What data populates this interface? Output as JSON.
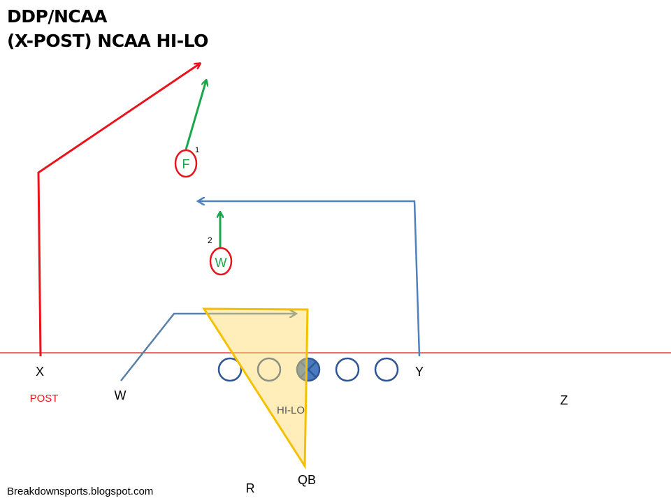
{
  "title_lines": [
    "DDP/NCAA",
    "(X-POST) NCAA HI-LO"
  ],
  "players": {
    "X": "X",
    "W": "W",
    "Y": "Y",
    "Z": "Z",
    "R": "R",
    "QB": "QB"
  },
  "defenders": {
    "F": "F",
    "W": "W"
  },
  "read_numbers": {
    "first": "1",
    "second": "2"
  },
  "route_labels": {
    "x_route": "POST",
    "concept": "HI-LO"
  },
  "footer": "Breakdownsports.blogspot.com",
  "colors": {
    "post_route": "#e8141c",
    "defender_route": "#1aa64a",
    "offense_route": "#4f81bd",
    "triangle_fill": "#ffe599",
    "triangle_stroke": "#f5c000",
    "line_of_scrimmage": "#d9141c",
    "lineman": "#2f5597"
  }
}
